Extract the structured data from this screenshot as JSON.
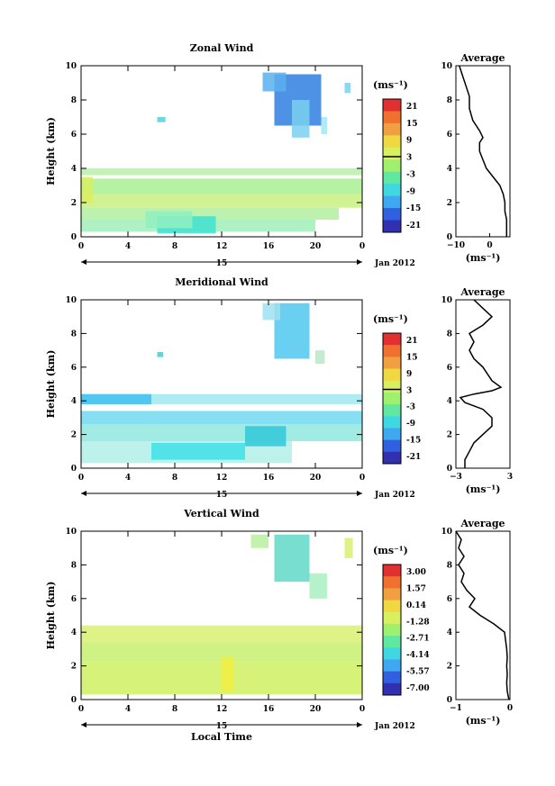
{
  "date_label": "Jan 2012",
  "day_label": "15",
  "x_axis_label": "Local Time",
  "y_axis_label": "Height (km)",
  "unit_label": "(ms⁻¹)",
  "average_title": "Average",
  "x_ticks": [
    "0",
    "4",
    "8",
    "12",
    "16",
    "20",
    "0"
  ],
  "y_ticks": [
    "0",
    "2",
    "4",
    "6",
    "8",
    "10"
  ],
  "chart_data": [
    {
      "type": "heatmap",
      "title": "Zonal Wind",
      "colorbar": {
        "ticks": [
          "21",
          "15",
          "9",
          "3",
          "-3",
          "-9",
          "-15",
          "-21"
        ],
        "range": [
          -24,
          24
        ]
      },
      "average_profile": {
        "xticks": [
          "−10",
          "0"
        ],
        "xlim": [
          -10,
          6
        ],
        "points": [
          [
            5,
            0
          ],
          [
            5,
            0.5
          ],
          [
            5,
            1
          ],
          [
            4.5,
            1.5
          ],
          [
            4.5,
            2
          ],
          [
            4,
            2.5
          ],
          [
            3,
            3
          ],
          [
            1,
            3.5
          ],
          [
            -1,
            4
          ],
          [
            -2,
            4.5
          ],
          [
            -3,
            5
          ],
          [
            -3,
            5.5
          ],
          [
            -2,
            5.8
          ],
          [
            -3,
            6.2
          ],
          [
            -5,
            6.8
          ],
          [
            -6,
            7.5
          ],
          [
            -6,
            8.2
          ],
          [
            -7,
            8.8
          ],
          [
            -8,
            9.4
          ],
          [
            -9,
            10
          ]
        ]
      },
      "blobs": [
        {
          "x0": 0,
          "x1": 24,
          "y0": 3.6,
          "y1": 4.0,
          "color": "#b8f0a8"
        },
        {
          "x0": 0,
          "x1": 24,
          "y0": 2.5,
          "y1": 3.4,
          "color": "#a8f090"
        },
        {
          "x0": 0,
          "x1": 24,
          "y0": 1.7,
          "y1": 2.5,
          "color": "#c8f080"
        },
        {
          "x0": 0,
          "x1": 22,
          "y0": 1.0,
          "y1": 1.7,
          "color": "#b0f0a0"
        },
        {
          "x0": 0,
          "x1": 20,
          "y0": 0.3,
          "y1": 1.0,
          "color": "#a0f0b8"
        },
        {
          "x0": 6.5,
          "x1": 11.5,
          "y0": 0.2,
          "y1": 1.2,
          "color": "#40e0d0"
        },
        {
          "x0": 5.5,
          "x1": 9.5,
          "y0": 0.5,
          "y1": 1.5,
          "color": "#8ff0c0"
        },
        {
          "x0": 16.5,
          "x1": 20.5,
          "y0": 6.5,
          "y1": 9.5,
          "color": "#2f7fe0"
        },
        {
          "x0": 15.5,
          "x1": 17.5,
          "y0": 8.5,
          "y1": 9.6,
          "color": "#5ab0f0"
        },
        {
          "x0": 18,
          "x1": 19.5,
          "y0": 5.8,
          "y1": 8.0,
          "color": "#7ad0f0"
        },
        {
          "x0": 6.5,
          "x1": 7.2,
          "y0": 6.7,
          "y1": 7.0,
          "color": "#50d0e0"
        },
        {
          "x0": 22.5,
          "x1": 23.0,
          "y0": 8.4,
          "y1": 9.0,
          "color": "#7ad0f0"
        },
        {
          "x0": 20.5,
          "x1": 21.0,
          "y0": 6.0,
          "y1": 7.0,
          "color": "#a0e8f0"
        },
        {
          "x0": 0,
          "x1": 1,
          "y0": 2.0,
          "y1": 3.5,
          "color": "#d8f060"
        }
      ]
    },
    {
      "type": "heatmap",
      "title": "Meridional Wind",
      "colorbar": {
        "ticks": [
          "21",
          "15",
          "9",
          "3",
          "-3",
          "-9",
          "-15",
          "-21"
        ],
        "range": [
          -24,
          24
        ]
      },
      "average_profile": {
        "xticks": [
          "−3",
          "3"
        ],
        "xlim": [
          -3,
          3
        ],
        "points": [
          [
            -2,
            0
          ],
          [
            -2,
            0.5
          ],
          [
            -1.5,
            1
          ],
          [
            -1,
            1.5
          ],
          [
            0,
            2
          ],
          [
            1,
            2.5
          ],
          [
            1,
            3
          ],
          [
            0,
            3.5
          ],
          [
            -2,
            3.9
          ],
          [
            -2.5,
            4.2
          ],
          [
            -1,
            4.4
          ],
          [
            1,
            4.6
          ],
          [
            2,
            4.8
          ],
          [
            1,
            5.2
          ],
          [
            0.5,
            5.6
          ],
          [
            0,
            6
          ],
          [
            -1,
            6.5
          ],
          [
            -1.5,
            7
          ],
          [
            -1,
            7.5
          ],
          [
            -1.5,
            8
          ],
          [
            0,
            8.5
          ],
          [
            1,
            9
          ],
          [
            0,
            9.5
          ],
          [
            -1,
            10
          ]
        ]
      },
      "blobs": [
        {
          "x0": 0,
          "x1": 24,
          "y0": 3.8,
          "y1": 4.4,
          "color": "#a0e8f0"
        },
        {
          "x0": 0,
          "x1": 6,
          "y0": 3.8,
          "y1": 4.4,
          "color": "#40c0f0"
        },
        {
          "x0": 0,
          "x1": 24,
          "y0": 2.6,
          "y1": 3.4,
          "color": "#70d8f0"
        },
        {
          "x0": 0,
          "x1": 24,
          "y0": 1.6,
          "y1": 2.6,
          "color": "#90e8e0"
        },
        {
          "x0": 0,
          "x1": 18,
          "y0": 0.3,
          "y1": 1.6,
          "color": "#b0f0e8"
        },
        {
          "x0": 6,
          "x1": 14,
          "y0": 0.5,
          "y1": 1.5,
          "color": "#40e0e8"
        },
        {
          "x0": 14,
          "x1": 17.5,
          "y0": 1.3,
          "y1": 2.5,
          "color": "#30c8d8"
        },
        {
          "x0": 16.5,
          "x1": 19.5,
          "y0": 6.5,
          "y1": 9.8,
          "color": "#50c8f0"
        },
        {
          "x0": 15.5,
          "x1": 17,
          "y0": 8.8,
          "y1": 9.8,
          "color": "#a0e0f0"
        },
        {
          "x0": 20,
          "x1": 20.8,
          "y0": 6.2,
          "y1": 7.0,
          "color": "#b8e8c8"
        },
        {
          "x0": 6.5,
          "x1": 7.0,
          "y0": 6.6,
          "y1": 6.9,
          "color": "#40d0d0"
        }
      ]
    },
    {
      "type": "heatmap",
      "title": "Vertical Wind",
      "colorbar": {
        "ticks": [
          "3.00",
          "1.57",
          "0.14",
          "-1.28",
          "-2.71",
          "-4.14",
          "-5.57",
          "-7.00"
        ],
        "range": [
          -7.0,
          3.0
        ]
      },
      "average_profile": {
        "xticks": [
          "−1",
          "0"
        ],
        "xlim": [
          -1,
          0
        ],
        "points": [
          [
            -0.02,
            0
          ],
          [
            -0.05,
            0.5
          ],
          [
            -0.06,
            1
          ],
          [
            -0.05,
            1.5
          ],
          [
            -0.06,
            2
          ],
          [
            -0.05,
            2.5
          ],
          [
            -0.06,
            3
          ],
          [
            -0.08,
            3.5
          ],
          [
            -0.1,
            4
          ],
          [
            -0.3,
            4.5
          ],
          [
            -0.55,
            5
          ],
          [
            -0.75,
            5.5
          ],
          [
            -0.65,
            6
          ],
          [
            -0.8,
            6.5
          ],
          [
            -0.9,
            7
          ],
          [
            -0.85,
            7.5
          ],
          [
            -0.95,
            8
          ],
          [
            -0.85,
            8.5
          ],
          [
            -0.95,
            9
          ],
          [
            -0.9,
            9.5
          ],
          [
            -1,
            10
          ]
        ]
      },
      "blobs": [
        {
          "x0": 0,
          "x1": 24,
          "y0": 3.4,
          "y1": 4.4,
          "color": "#d8f070"
        },
        {
          "x0": 0,
          "x1": 24,
          "y0": 2.2,
          "y1": 3.4,
          "color": "#c8f070"
        },
        {
          "x0": 0,
          "x1": 24,
          "y0": 0.3,
          "y1": 2.2,
          "color": "#d0f060"
        },
        {
          "x0": 12,
          "x1": 13,
          "y0": 0.5,
          "y1": 2.5,
          "color": "#f0f040"
        },
        {
          "x0": 16.5,
          "x1": 19.5,
          "y0": 7.0,
          "y1": 9.8,
          "color": "#60d8c8"
        },
        {
          "x0": 14.5,
          "x1": 16,
          "y0": 9.0,
          "y1": 9.8,
          "color": "#b8f0a0"
        },
        {
          "x0": 19.5,
          "x1": 21,
          "y0": 6.0,
          "y1": 7.5,
          "color": "#a8f0c0"
        },
        {
          "x0": 22.5,
          "x1": 23.2,
          "y0": 8.4,
          "y1": 9.6,
          "color": "#d8f070"
        }
      ]
    }
  ]
}
